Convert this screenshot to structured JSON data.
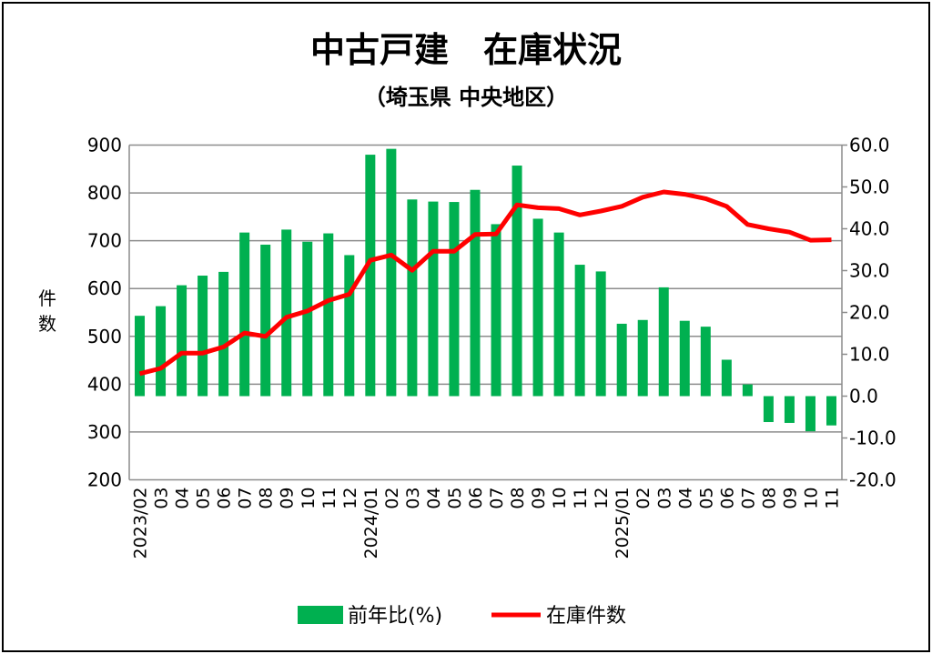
{
  "chart_data": {
    "type": "bar+line",
    "title": "中古戸建　在庫状況",
    "subtitle": "（埼玉県 中央地区）",
    "ylabel_left": "件数",
    "left_axis": {
      "range": [
        200,
        900
      ],
      "ticks": [
        "200",
        "300",
        "400",
        "500",
        "600",
        "700",
        "800",
        "900"
      ]
    },
    "right_axis": {
      "range": [
        -20,
        60
      ],
      "ticks": [
        "-20.0",
        "-10.0",
        "0.0",
        "10.0",
        "20.0",
        "30.0",
        "40.0",
        "50.0",
        "60.0"
      ],
      "negative_color": "#e00000"
    },
    "categories": [
      "2023/02",
      "03",
      "04",
      "05",
      "06",
      "07",
      "08",
      "09",
      "10",
      "11",
      "12",
      "2024/01",
      "02",
      "03",
      "04",
      "05",
      "06",
      "07",
      "08",
      "09",
      "10",
      "11",
      "12",
      "2025/01",
      "02",
      "03",
      "04",
      "05",
      "06",
      "07",
      "08",
      "09",
      "10",
      "11"
    ],
    "series": [
      {
        "name": "前年比(%)",
        "type": "bar",
        "axis": "right",
        "color": "#00b050",
        "values": [
          19.2,
          21.5,
          26.5,
          28.8,
          29.7,
          39.1,
          36.2,
          39.8,
          36.9,
          38.9,
          33.7,
          57.7,
          59.1,
          47.0,
          46.5,
          46.4,
          49.3,
          41.1,
          55.1,
          42.4,
          39.1,
          31.4,
          29.8,
          17.3,
          18.2,
          26.0,
          18.0,
          16.6,
          8.7,
          2.8,
          -6.2,
          -6.4,
          -8.4,
          -7.0
        ]
      },
      {
        "name": "在庫件数",
        "type": "line",
        "axis": "left",
        "color": "#ff0000",
        "values": [
          422,
          433,
          465,
          465,
          478,
          507,
          500,
          540,
          553,
          575,
          588,
          659,
          670,
          638,
          678,
          678,
          713,
          714,
          775,
          769,
          767,
          754,
          762,
          772,
          791,
          802,
          797,
          788,
          772,
          734,
          725,
          718,
          701,
          702
        ]
      }
    ],
    "grid": true,
    "legend": "bottom"
  }
}
